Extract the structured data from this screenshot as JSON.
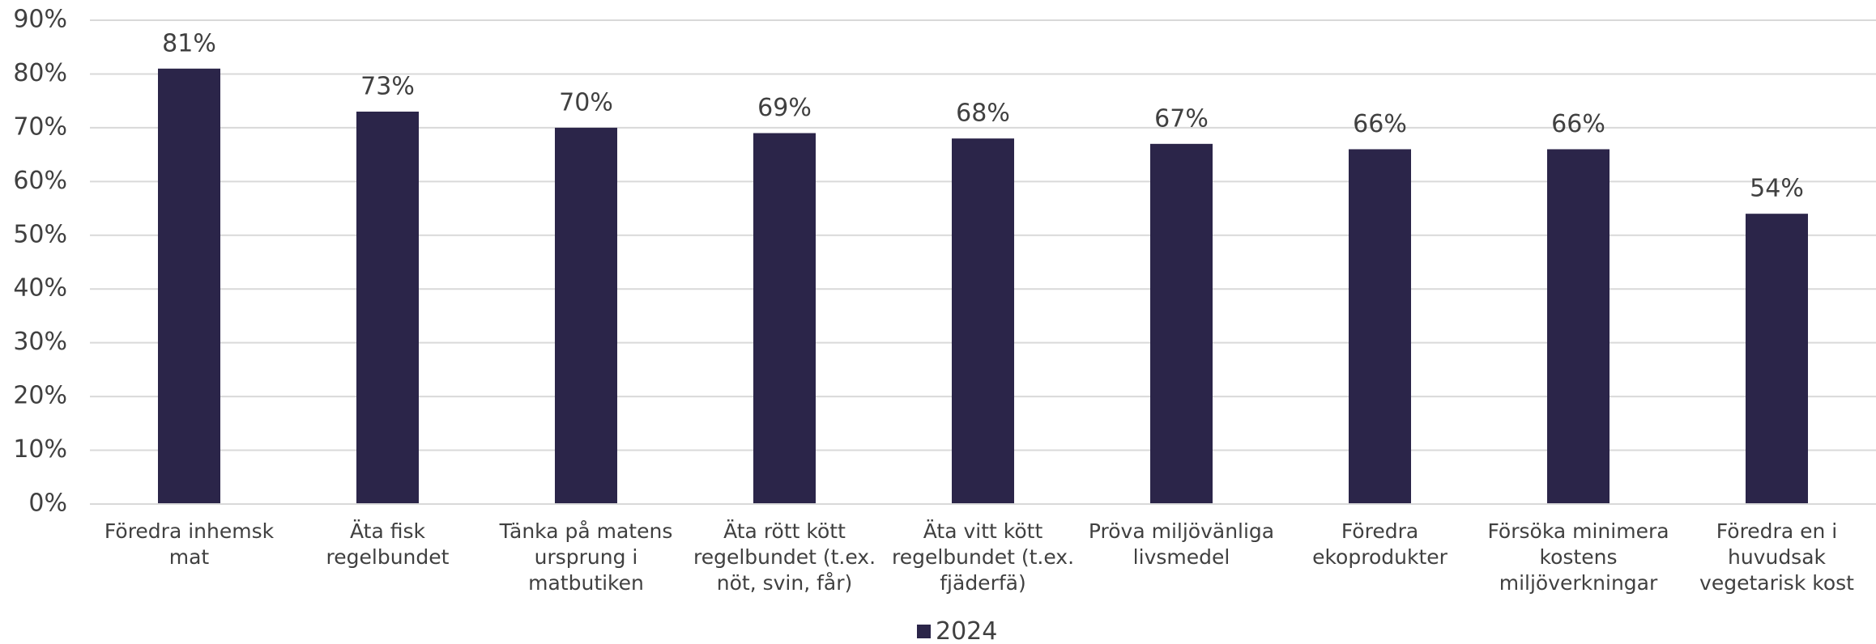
{
  "chart_data": {
    "type": "bar",
    "categories": [
      "Föredra inhemsk mat",
      "Äta fisk regelbundet",
      "Tänka på matens ursprung i matbutiken",
      "Äta rött kött regelbundet (t.ex. nöt, svin, får)",
      "Äta vitt kött regelbundet (t.ex. fjäderfä)",
      "Pröva miljövänliga livsmedel",
      "Föredra ekoprodukter",
      "Försöka minimera kostens miljöverkningar",
      "Föredra en i huvudsak vegetarisk kost"
    ],
    "series": [
      {
        "name": "2024",
        "color": "#2b2549",
        "values": [
          81,
          73,
          70,
          69,
          68,
          67,
          66,
          66,
          54
        ],
        "value_labels": [
          "81%",
          "73%",
          "70%",
          "69%",
          "68%",
          "67%",
          "66%",
          "66%",
          "54%"
        ]
      }
    ],
    "ylim": [
      0,
      90
    ],
    "yticks": [
      {
        "value": 0,
        "label": "0%"
      },
      {
        "value": 10,
        "label": "10%"
      },
      {
        "value": 20,
        "label": "20%"
      },
      {
        "value": 30,
        "label": "30%"
      },
      {
        "value": 40,
        "label": "40%"
      },
      {
        "value": 50,
        "label": "50%"
      },
      {
        "value": 60,
        "label": "60%"
      },
      {
        "value": 70,
        "label": "70%"
      },
      {
        "value": 80,
        "label": "80%"
      },
      {
        "value": 90,
        "label": "90%"
      }
    ],
    "grid": true,
    "legend": "bottom"
  }
}
